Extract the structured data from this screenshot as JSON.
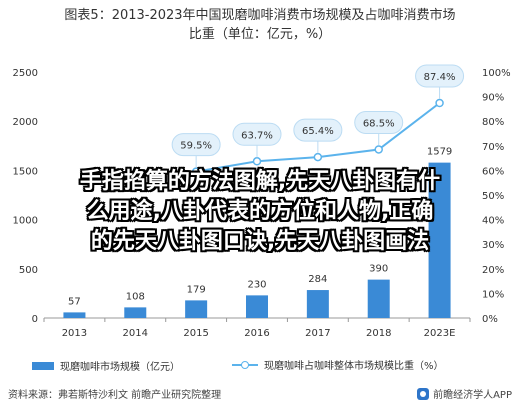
{
  "title_line1": "图表5：2013-2023年中国现磨咖啡消费市场规模及占咖啡消费市场",
  "title_line2": "比重（单位：亿元，%）",
  "overlay_text": [
    "手指掐算的方法图解,先天八卦图有什",
    "么用途,八卦代表的方位和人物,正确",
    "的先天八卦图口诀,先天八卦图画法"
  ],
  "legend_bar": "现磨咖啡市场规模（亿元）",
  "legend_line": "现磨咖啡占咖啡整体市场规模比重（%）",
  "source": "资料来源：弗若斯特沙利文 前瞻产业研究院整理",
  "logo_text": "前瞻经济学人APP",
  "chart_data": {
    "type": "bar",
    "categories": [
      "2013",
      "2014",
      "2015",
      "2016",
      "2017",
      "2018",
      "2023E"
    ],
    "series": [
      {
        "name": "现磨咖啡市场规模（亿元）",
        "type": "bar",
        "axis": "left",
        "values": [
          57,
          108,
          179,
          230,
          284,
          390,
          1579
        ],
        "labels": [
          "57",
          "108",
          "179",
          "230",
          "284",
          "390",
          "1579"
        ],
        "color": "#3a8ad6"
      },
      {
        "name": "现磨咖啡占咖啡整体市场规模比重（%）",
        "type": "line",
        "axis": "right",
        "values": [
          null,
          null,
          59.5,
          63.7,
          65.4,
          68.5,
          87.4
        ],
        "labels": [
          "",
          "",
          "59.5%",
          "63.7%",
          "65.4%",
          "68.5%",
          "87.4%"
        ],
        "color": "#5bb3ec"
      }
    ],
    "y_left": {
      "min": 0,
      "max": 2500,
      "ticks": [
        0,
        500,
        1000,
        1500,
        2000,
        2500
      ]
    },
    "y_right": {
      "min": 0,
      "max": 100,
      "ticks": [
        "0%",
        "10%",
        "20%",
        "30%",
        "40%",
        "50%",
        "60%",
        "70%",
        "80%",
        "90%",
        "100%"
      ]
    },
    "legend_position": "bottom",
    "grid": false
  }
}
